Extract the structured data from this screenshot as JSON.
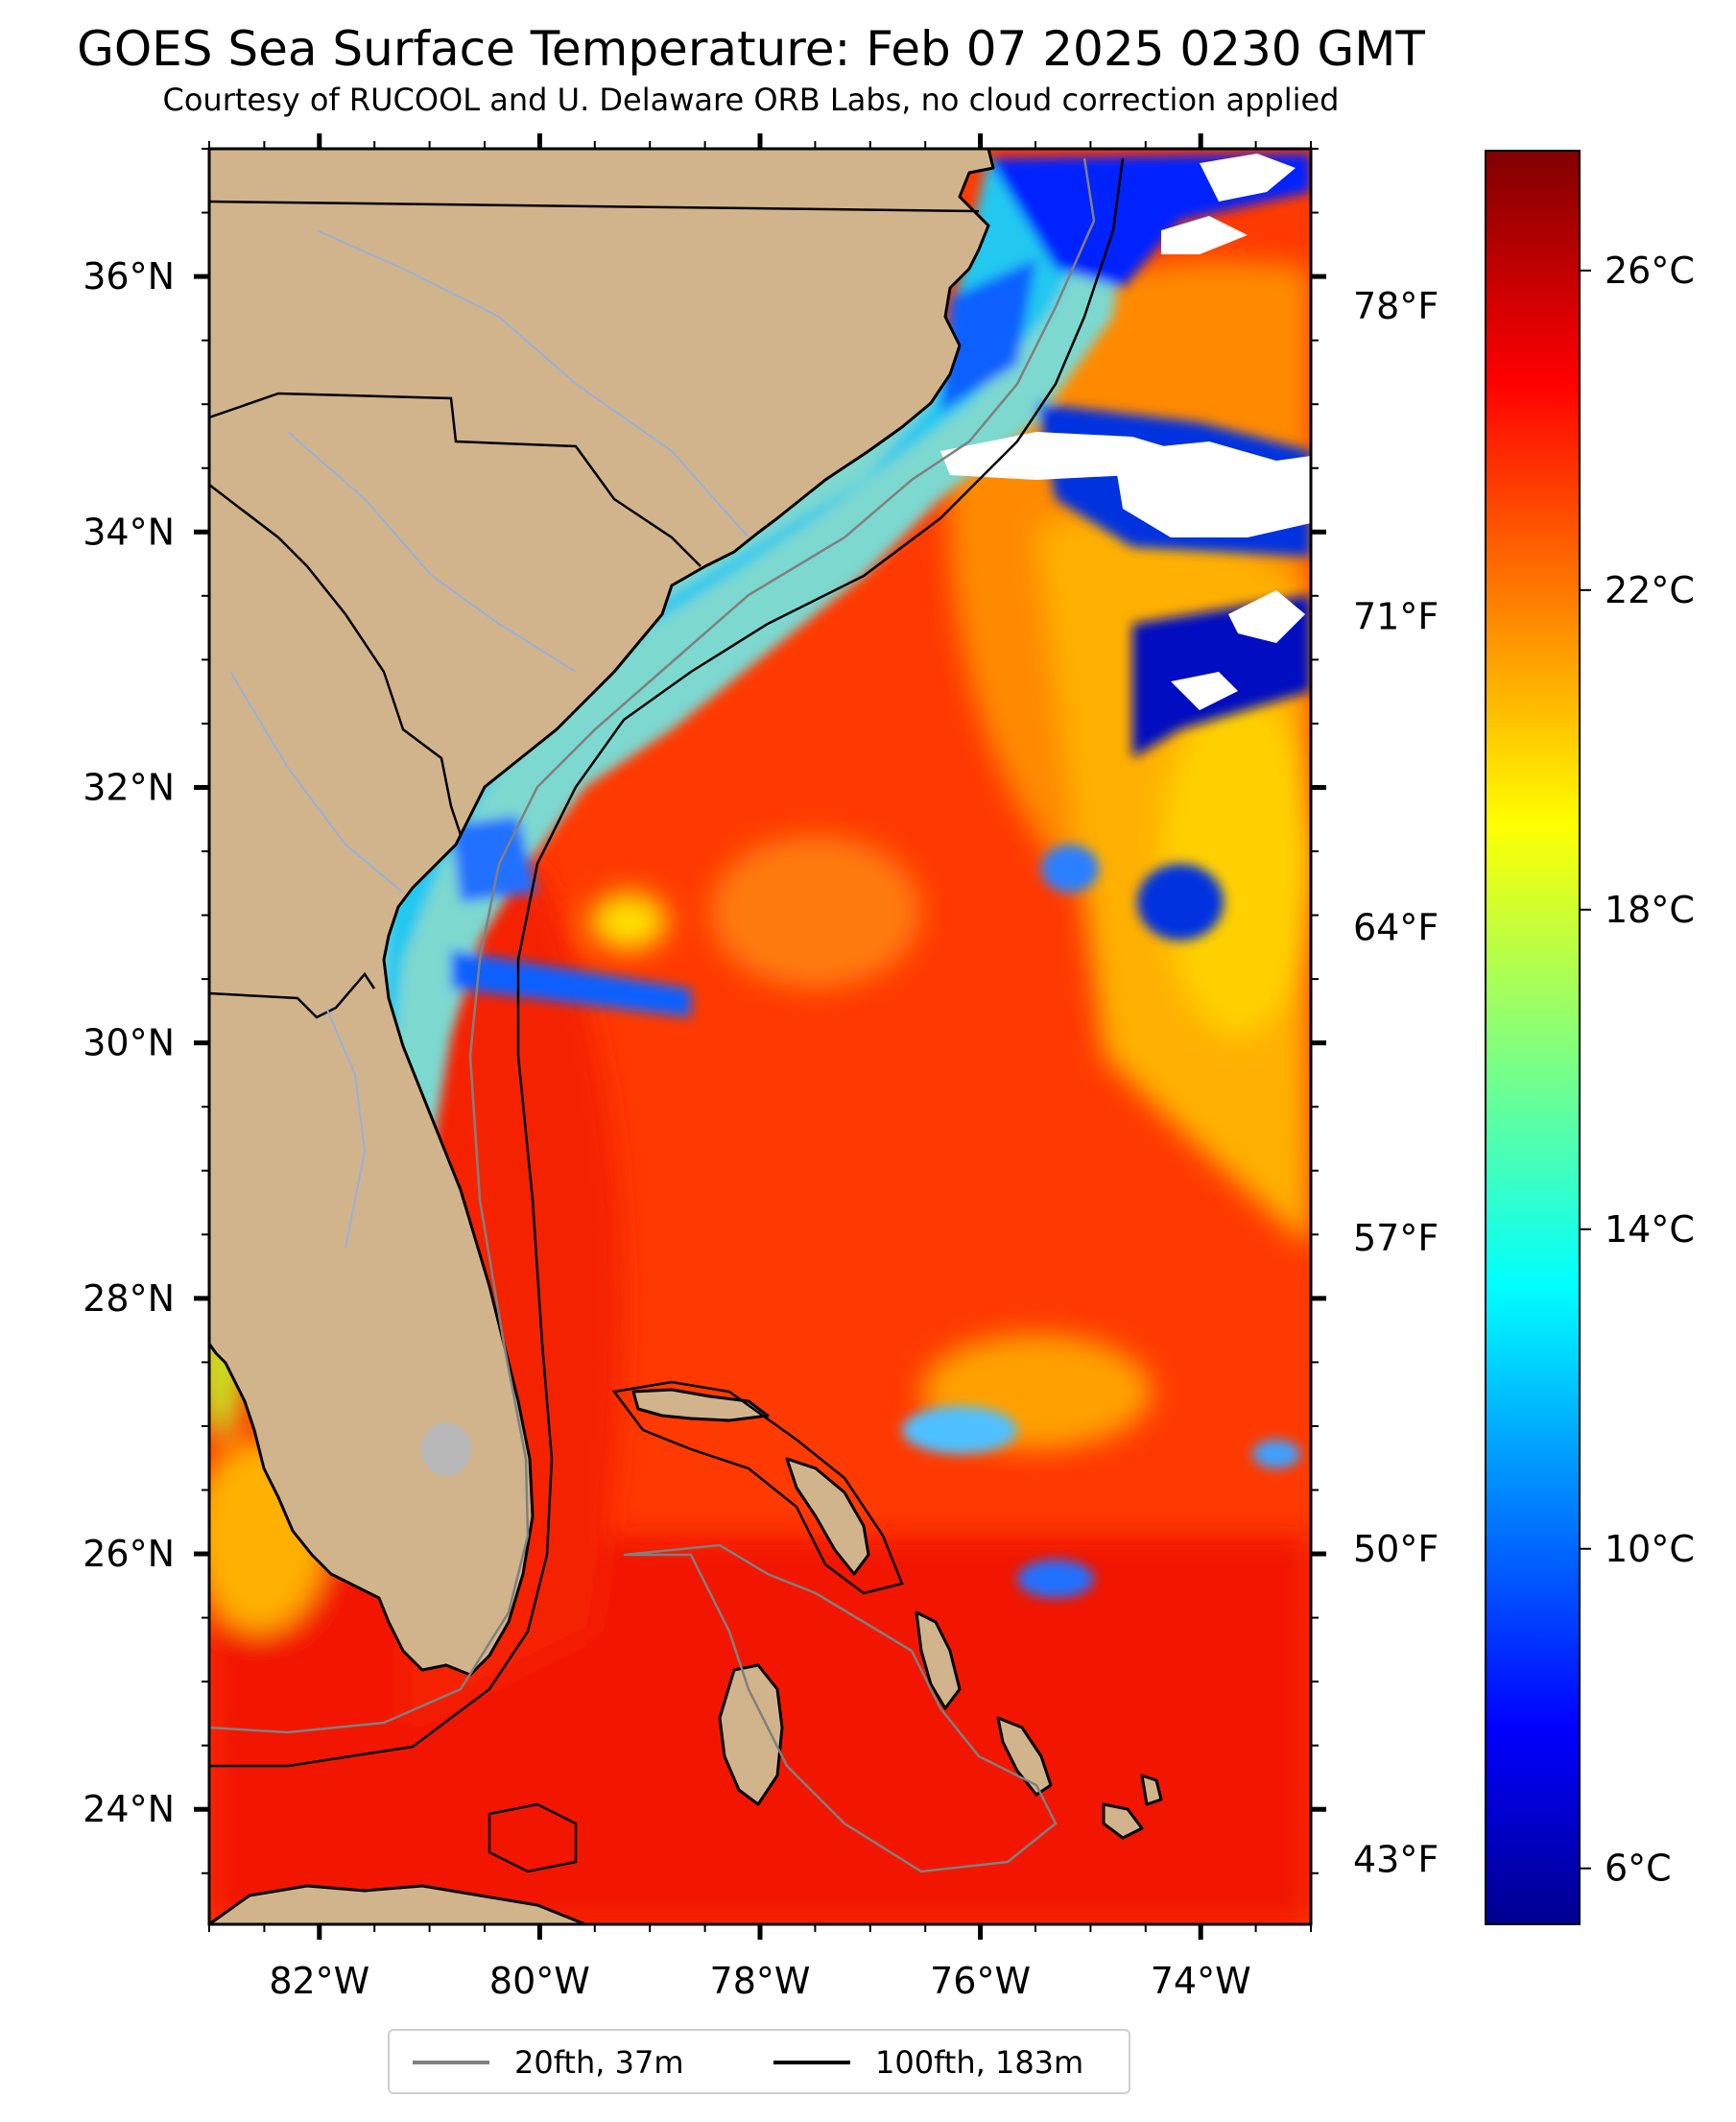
{
  "title": "GOES Sea Surface Temperature: Feb 07 2025 0230 GMT",
  "subtitle": "Courtesy of RUCOOL and U. Delaware ORB Labs, no cloud correction applied",
  "map": {
    "lon_range": [
      -83,
      -73
    ],
    "lat_range": [
      23.1,
      37
    ],
    "lat_ticks": [
      "36°N",
      "34°N",
      "32°N",
      "30°N",
      "28°N",
      "26°N",
      "24°N"
    ],
    "lat_tick_values": [
      36,
      34,
      32,
      30,
      28,
      26,
      24
    ],
    "lon_ticks": [
      "82°W",
      "80°W",
      "78°W",
      "76°W",
      "74°W"
    ],
    "lon_tick_values": [
      -82,
      -80,
      -78,
      -76,
      -74
    ],
    "land_color": "#d2b48c",
    "cloud_color": "#ffffff",
    "right_axis_ticks": [
      "78°F",
      "71°F",
      "64°F",
      "57°F",
      "50°F",
      "43°F"
    ]
  },
  "colorbar": {
    "colormap": "jet",
    "range_c": [
      5.3,
      27.5
    ],
    "ticks": [
      "26°C",
      "22°C",
      "18°C",
      "14°C",
      "10°C",
      "6°C"
    ],
    "tick_values_c": [
      26,
      22,
      18,
      14,
      10,
      6
    ]
  },
  "legend": {
    "items": [
      {
        "label": "20fth, 37m",
        "color": "#808080"
      },
      {
        "label": "100fth, 183m",
        "color": "#000000"
      }
    ]
  }
}
